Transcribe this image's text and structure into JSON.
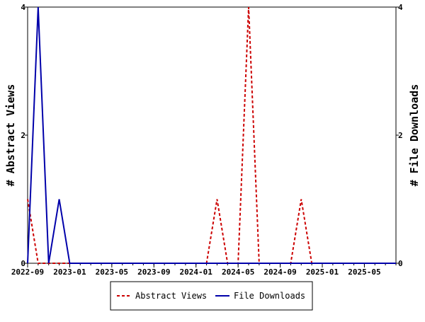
{
  "chart_data": {
    "type": "line",
    "title": "",
    "xlabel": "",
    "ylabel_left": "# Abstract Views",
    "ylabel_right": "# File Downloads",
    "ylim": [
      0,
      4
    ],
    "yticks": [
      0,
      2,
      4
    ],
    "x": [
      "2022-09",
      "2022-10",
      "2022-11",
      "2022-12",
      "2023-01",
      "2023-02",
      "2023-03",
      "2023-04",
      "2023-05",
      "2023-06",
      "2023-07",
      "2023-08",
      "2023-09",
      "2023-10",
      "2023-11",
      "2023-12",
      "2024-01",
      "2024-02",
      "2024-03",
      "2024-04",
      "2024-05",
      "2024-06",
      "2024-07",
      "2024-08",
      "2024-09",
      "2024-10",
      "2024-11",
      "2024-12",
      "2025-01",
      "2025-02",
      "2025-03",
      "2025-04",
      "2025-05",
      "2025-06",
      "2025-07",
      "2025-08"
    ],
    "xticks": [
      "2022-09",
      "2023-01",
      "2023-05",
      "2023-09",
      "2024-01",
      "2024-05",
      "2024-09",
      "2025-01",
      "2025-05"
    ],
    "series": [
      {
        "name": "Abstract Views",
        "color": "#cc0000",
        "dash": "dashed",
        "values": [
          1,
          0,
          0,
          0,
          0,
          0,
          0,
          0,
          0,
          0,
          0,
          0,
          0,
          0,
          0,
          0,
          0,
          0,
          1,
          0,
          0,
          4,
          0,
          0,
          0,
          0,
          1,
          0,
          0,
          0,
          0,
          0,
          0,
          0,
          0,
          0
        ]
      },
      {
        "name": "File Downloads",
        "color": "#0000aa",
        "dash": "solid",
        "values": [
          0,
          4,
          0,
          1,
          0,
          0,
          0,
          0,
          0,
          0,
          0,
          0,
          0,
          0,
          0,
          0,
          0,
          0,
          0,
          0,
          0,
          0,
          0,
          0,
          0,
          0,
          0,
          0,
          0,
          0,
          0,
          0,
          0,
          0,
          0,
          0
        ]
      }
    ],
    "legend": "bottom-center",
    "grid": false
  }
}
